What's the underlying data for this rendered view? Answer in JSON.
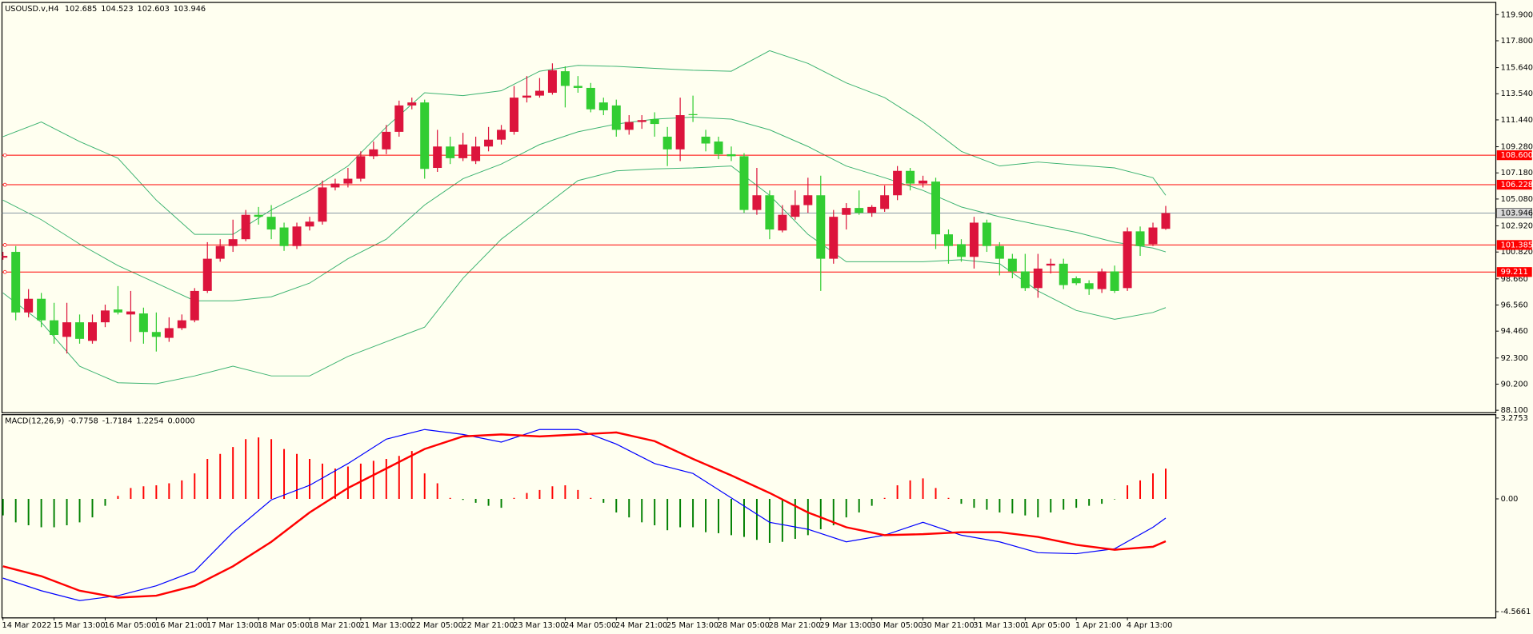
{
  "chart_data": [
    {
      "type": "candlestick",
      "title": "USOUSD.v,H4",
      "readout": [
        102.685,
        104.523,
        102.603,
        103.946
      ],
      "categories": [
        "14 Mar 2022",
        null,
        null,
        null,
        "15 Mar 13:00",
        null,
        null,
        null,
        "16 Mar 05:00",
        null,
        null,
        null,
        "16 Mar 21:00",
        null,
        null,
        null,
        "17 Mar 13:00",
        null,
        null,
        null,
        "18 Mar 05:00",
        null,
        null,
        null,
        "18 Mar 21:00",
        null,
        null,
        null,
        "21 Mar 13:00",
        null,
        null,
        null,
        "22 Mar 05:00",
        null,
        null,
        null,
        "22 Mar 21:00",
        null,
        null,
        null,
        "23 Mar 13:00",
        null,
        null,
        null,
        "24 Mar 05:00",
        null,
        null,
        null,
        "24 Mar 21:00",
        null,
        null,
        null,
        "25 Mar 13:00",
        null,
        null,
        null,
        "28 Mar 05:00",
        null,
        null,
        null,
        "28 Mar 21:00",
        null,
        null,
        null,
        "29 Mar 13:00",
        null,
        null,
        null,
        "30 Mar 05:00",
        null,
        null,
        null,
        "30 Mar 21:00",
        null,
        null,
        null,
        "31 Mar 13:00",
        null,
        null,
        null,
        "1 Apr 05:00",
        null,
        null,
        null,
        "1 Apr 21:00",
        null,
        null,
        null,
        "4 Apr 13:00",
        null,
        null,
        null
      ],
      "open": [
        100.36,
        100.83,
        95.96,
        97.06,
        95.33,
        94.0,
        95.17,
        93.68,
        95.17,
        96.2,
        95.8,
        95.88,
        94.39,
        93.92,
        94.7,
        95.33,
        97.69,
        100.28,
        101.3,
        101.85,
        103.81,
        103.65,
        102.79,
        101.3,
        102.87,
        103.26,
        106.01,
        106.32,
        106.71,
        108.52,
        109.07,
        110.48,
        112.6,
        112.84,
        107.58,
        109.3,
        108.36,
        108.13,
        109.3,
        109.85,
        110.48,
        113.23,
        113.39,
        113.62,
        115.35,
        114.17,
        114.01,
        112.84,
        112.6,
        110.64,
        111.27,
        111.5,
        110.09,
        109.07,
        111.9,
        110.09,
        109.7,
        108.68,
        108.52,
        104.2,
        105.38,
        102.55,
        103.65,
        104.59,
        105.38,
        100.28,
        103.81,
        104.36,
        103.97,
        104.28,
        105.38,
        107.34,
        106.32,
        106.48,
        102.24,
        101.45,
        100.43,
        103.18,
        101.3,
        100.28,
        99.26,
        97.92,
        99.73,
        99.88,
        98.71,
        98.31,
        97.84,
        99.26,
        97.92,
        102.48,
        101.45,
        102.685
      ],
      "high": [
        100.83,
        101.3,
        97.84,
        97.53,
        96.74,
        96.74,
        95.8,
        95.8,
        96.59,
        98.08,
        97.69,
        96.35,
        95.96,
        95.57,
        95.8,
        97.92,
        101.61,
        101.85,
        103.42,
        104.2,
        104.44,
        104.59,
        103.18,
        103.18,
        103.65,
        106.56,
        106.71,
        107.58,
        108.91,
        109.7,
        111.03,
        112.99,
        113.23,
        113.07,
        110.64,
        110.09,
        110.4,
        110.09,
        110.87,
        111.03,
        114.17,
        114.96,
        114.8,
        115.98,
        115.74,
        114.96,
        114.41,
        113.23,
        113.07,
        111.82,
        111.82,
        112.05,
        110.87,
        113.23,
        113.39,
        110.64,
        110.09,
        109.3,
        108.76,
        107.58,
        105.77,
        104.59,
        105.77,
        106.79,
        106.95,
        104.2,
        104.75,
        105.77,
        104.59,
        106.16,
        107.73,
        107.58,
        106.95,
        106.79,
        102.63,
        101.85,
        103.65,
        103.42,
        101.61,
        100.67,
        100.67,
        100.67,
        100.28,
        100.28,
        98.86,
        98.55,
        99.49,
        99.73,
        102.79,
        102.87,
        103.18,
        104.523
      ],
      "low": [
        100.2,
        95.33,
        95.57,
        94.78,
        93.45,
        92.66,
        93.45,
        93.45,
        94.78,
        95.8,
        93.6,
        93.45,
        92.82,
        93.6,
        94.55,
        95.17,
        97.53,
        100.04,
        100.83,
        101.69,
        103.02,
        101.85,
        100.91,
        101.06,
        102.55,
        103.02,
        105.77,
        106.01,
        106.48,
        108.28,
        108.68,
        110.09,
        112.29,
        106.71,
        107.26,
        107.89,
        108.13,
        107.89,
        108.91,
        109.46,
        110.25,
        112.84,
        113.23,
        113.47,
        112.44,
        113.62,
        112.05,
        111.82,
        110.09,
        110.25,
        110.72,
        110.09,
        107.73,
        108.13,
        111.27,
        108.91,
        108.28,
        108.13,
        103.97,
        103.81,
        101.85,
        102.4,
        103.42,
        103.97,
        97.69,
        99.88,
        102.63,
        103.81,
        103.65,
        104.05,
        104.99,
        105.77,
        106.01,
        101.06,
        99.88,
        100.04,
        99.49,
        100.83,
        98.94,
        98.71,
        97.69,
        97.14,
        99.1,
        97.84,
        98.16,
        97.37,
        97.53,
        97.53,
        97.69,
        100.51,
        101.3,
        102.603
      ],
      "close": [
        100.51,
        95.96,
        97.06,
        95.33,
        94.15,
        95.17,
        93.84,
        95.17,
        96.12,
        95.96,
        96.04,
        94.39,
        94.0,
        94.7,
        95.33,
        97.69,
        100.28,
        101.3,
        101.85,
        103.81,
        103.65,
        102.63,
        101.3,
        102.87,
        103.26,
        106.01,
        106.32,
        106.71,
        108.52,
        109.07,
        110.48,
        112.6,
        112.84,
        107.5,
        109.3,
        108.36,
        109.46,
        109.3,
        109.85,
        110.64,
        113.23,
        113.39,
        113.78,
        115.43,
        114.17,
        114.01,
        112.29,
        112.21,
        110.64,
        111.27,
        111.42,
        111.11,
        109.07,
        111.82,
        111.82,
        109.54,
        108.68,
        108.52,
        104.2,
        105.38,
        102.63,
        103.81,
        104.59,
        105.38,
        100.28,
        103.65,
        104.36,
        103.97,
        104.44,
        105.38,
        107.34,
        106.32,
        106.56,
        102.24,
        101.3,
        100.43,
        103.18,
        101.3,
        100.28,
        99.26,
        97.92,
        99.49,
        99.88,
        98.16,
        98.31,
        97.84,
        99.26,
        97.69,
        102.48,
        101.3,
        102.79,
        103.946
      ],
      "up_color": "#dc143c",
      "down_color": "#32cd32",
      "bands": {
        "color": "#3cb371",
        "x": [
          0,
          3,
          6,
          9,
          12,
          15,
          18,
          21,
          24,
          27,
          30,
          33,
          36,
          39,
          42,
          45,
          48,
          51,
          54,
          57,
          60,
          63,
          66,
          69,
          72,
          75,
          78,
          81,
          84,
          87,
          90,
          91
        ],
        "series": [
          {
            "values": [
              110.09,
              111.27,
              109.7,
              108.36,
              104.99,
              102.24,
              102.24,
              104.2,
              105.77,
              107.73,
              110.87,
              113.62,
              113.39,
              113.78,
              115.35,
              115.82,
              115.74,
              115.58,
              115.43,
              115.35,
              117.0,
              115.98,
              114.41,
              113.23,
              111.27,
              108.91,
              107.73,
              108.05,
              107.81,
              107.58,
              106.79,
              105.38
            ]
          },
          {
            "values": [
              104.99,
              103.42,
              101.46,
              99.73,
              98.32,
              96.9,
              96.9,
              97.22,
              98.32,
              100.28,
              101.85,
              104.6,
              106.71,
              107.89,
              109.46,
              110.48,
              111.11,
              111.5,
              111.66,
              111.5,
              110.64,
              109.3,
              107.73,
              106.79,
              105.77,
              104.44,
              103.65,
              103.02,
              102.4,
              101.61,
              101.14,
              100.83
            ]
          },
          {
            "values": [
              97.53,
              95.17,
              91.64,
              90.31,
              90.23,
              90.86,
              91.64,
              90.86,
              90.86,
              92.43,
              93.61,
              94.78,
              98.71,
              101.85,
              104.2,
              106.56,
              107.34,
              107.5,
              107.58,
              107.73,
              105.38,
              102.24,
              100.04,
              100.04,
              100.04,
              100.2,
              99.88,
              97.69,
              96.12,
              95.41,
              95.96,
              96.35
            ]
          }
        ]
      },
      "hlines": [
        {
          "value": 108.6,
          "label": "108.600"
        },
        {
          "value": 106.228,
          "label": "106.228"
        },
        {
          "value": 101.385,
          "label": "101.385"
        },
        {
          "value": 99.211,
          "label": "99.211"
        }
      ],
      "hline_color": "#ff0000",
      "price_line_color": "#778899",
      "ylim": [
        87.94,
        120.84
      ],
      "yticks": [
        {
          "value": 119.9,
          "label": "119.900"
        },
        {
          "value": 117.8,
          "label": "117.800"
        },
        {
          "value": 115.64,
          "label": "115.640"
        },
        {
          "value": 113.54,
          "label": "113.540"
        },
        {
          "value": 111.44,
          "label": "111.440"
        },
        {
          "value": 109.28,
          "label": "109.280"
        },
        {
          "value": 107.18,
          "label": "107.180"
        },
        {
          "value": 105.08,
          "label": "105.080"
        },
        {
          "value": 102.92,
          "label": "102.920"
        },
        {
          "value": 100.82,
          "label": "100.820"
        },
        {
          "value": 98.66,
          "label": "98.660"
        },
        {
          "value": 96.56,
          "label": "96.560"
        },
        {
          "value": 94.46,
          "label": "94.460"
        },
        {
          "value": 92.3,
          "label": "92.300"
        },
        {
          "value": 90.2,
          "label": "90.200"
        },
        {
          "value": 88.1,
          "label": "88.100"
        }
      ]
    },
    {
      "type": "macd",
      "title": "MACD(12,26,9)",
      "readout": [
        -0.7758,
        -1.7184,
        1.2254,
        {
          "value": 0,
          "label": "0.0000"
        }
      ],
      "histogram": [
        -0.67,
        -0.95,
        -1.07,
        -1.15,
        -1.15,
        -1.07,
        -0.95,
        -0.75,
        -0.28,
        0.12,
        0.44,
        0.51,
        0.55,
        0.63,
        0.75,
        1.03,
        1.62,
        1.82,
        2.1,
        2.42,
        2.49,
        2.42,
        2.02,
        1.82,
        1.62,
        1.43,
        1.23,
        1.31,
        1.43,
        1.54,
        1.62,
        1.74,
        1.94,
        1.03,
        0.63,
        0.04,
        -0.04,
        -0.16,
        -0.28,
        -0.36,
        0.04,
        0.24,
        0.36,
        0.51,
        0.55,
        0.36,
        0.04,
        -0.16,
        -0.55,
        -0.75,
        -0.95,
        -1.07,
        -1.27,
        -1.15,
        -1.15,
        -1.35,
        -1.39,
        -1.47,
        -1.54,
        -1.66,
        -1.78,
        -1.74,
        -1.62,
        -1.47,
        -1.23,
        -1.07,
        -0.75,
        -0.55,
        -0.28,
        0.04,
        0.55,
        0.75,
        0.83,
        0.44,
        0.04,
        -0.2,
        -0.36,
        -0.44,
        -0.55,
        -0.59,
        -0.67,
        -0.75,
        -0.55,
        -0.44,
        -0.36,
        -0.28,
        -0.2,
        -0.02,
        0.55,
        0.75,
        1.03,
        1.2254
      ],
      "up_color": "#ff0000",
      "down_color": "#008000",
      "x": [
        0,
        3,
        6,
        9,
        12,
        15,
        18,
        21,
        24,
        27,
        30,
        33,
        36,
        39,
        42,
        45,
        48,
        51,
        54,
        57,
        60,
        63,
        66,
        69,
        72,
        75,
        78,
        81,
        84,
        87,
        90,
        91
      ],
      "series": [
        {
          "color": "#0000ff",
          "width": 1,
          "values": [
            -3.21,
            -3.72,
            -4.12,
            -3.92,
            -3.52,
            -2.93,
            -1.35,
            -0.04,
            0.55,
            1.43,
            2.42,
            2.81,
            2.61,
            2.3,
            2.81,
            2.81,
            2.22,
            1.43,
            1.03,
            0.04,
            -0.95,
            -1.23,
            -1.74,
            -1.47,
            -0.95,
            -1.47,
            -1.74,
            -2.18,
            -2.22,
            -2.02,
            -1.15,
            -0.7758
          ]
        },
        {
          "color": "#ff0000",
          "width": 2,
          "values": [
            -2.73,
            -3.13,
            -3.72,
            -4.0,
            -3.92,
            -3.52,
            -2.73,
            -1.74,
            -0.55,
            0.44,
            1.23,
            2.02,
            2.53,
            2.61,
            2.53,
            2.61,
            2.69,
            2.34,
            1.62,
            0.95,
            0.24,
            -0.55,
            -1.15,
            -1.47,
            -1.43,
            -1.35,
            -1.35,
            -1.54,
            -1.86,
            -2.06,
            -1.94,
            -1.7184
          ]
        }
      ],
      "ylim": [
        -4.8,
        3.39
      ],
      "yticks": [
        3.2753,
        {
          "value": 0,
          "label": "0.00"
        },
        -4.5661
      ]
    }
  ]
}
